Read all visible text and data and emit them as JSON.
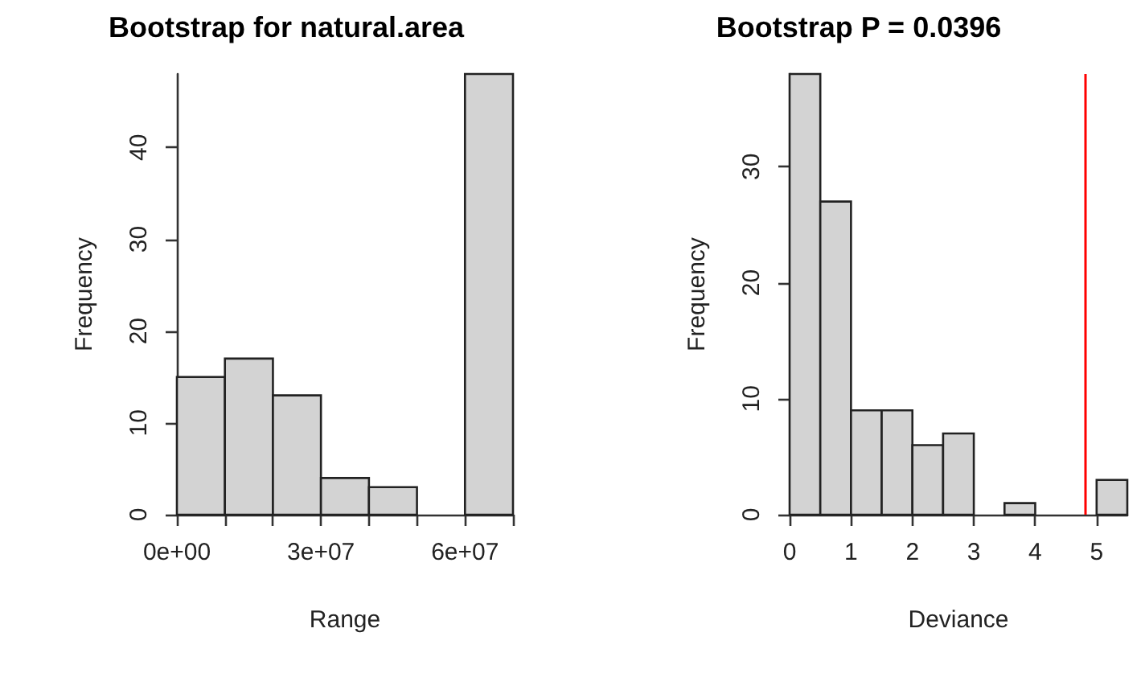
{
  "chart_data": [
    {
      "type": "histogram",
      "title": "Bootstrap for natural.area",
      "xlabel": "Range",
      "ylabel": "Frequency",
      "color": "#d3d3d3",
      "bins": [
        0,
        10000000,
        20000000,
        30000000,
        40000000,
        50000000,
        60000000,
        70000000
      ],
      "values": [
        15,
        17,
        13,
        4,
        3,
        0,
        48
      ],
      "xlim": [
        0,
        70000000
      ],
      "xticks": [
        {
          "value": 0,
          "label": "0e+00"
        },
        {
          "value": 10000000,
          "label": null
        },
        {
          "value": 20000000,
          "label": null
        },
        {
          "value": 30000000,
          "label": "3e+07"
        },
        {
          "value": 40000000,
          "label": null
        },
        {
          "value": 50000000,
          "label": null
        },
        {
          "value": 60000000,
          "label": "6e+07"
        },
        {
          "value": 70000000,
          "label": null
        }
      ],
      "ylim": [
        0,
        48
      ],
      "yticks": [
        0,
        10,
        20,
        30,
        40
      ]
    },
    {
      "type": "histogram",
      "title": "Bootstrap P = 0.0396",
      "xlabel": "Deviance",
      "ylabel": "Frequency",
      "color": "#d3d3d3",
      "bins": [
        0,
        0.5,
        1,
        1.5,
        2,
        2.5,
        3,
        3.5,
        4,
        4.5,
        5,
        5.5
      ],
      "values": [
        38,
        27,
        9,
        9,
        6,
        7,
        0,
        1,
        0,
        0,
        3
      ],
      "xlim": [
        0,
        5.5
      ],
      "xticks": [
        0,
        1,
        2,
        3,
        4,
        5
      ],
      "ylim": [
        0,
        38
      ],
      "yticks": [
        0,
        10,
        20,
        30
      ],
      "ref_lines": [
        {
          "axis": "x",
          "value": 4.8,
          "label": null,
          "color": "#ff0000"
        }
      ]
    }
  ]
}
